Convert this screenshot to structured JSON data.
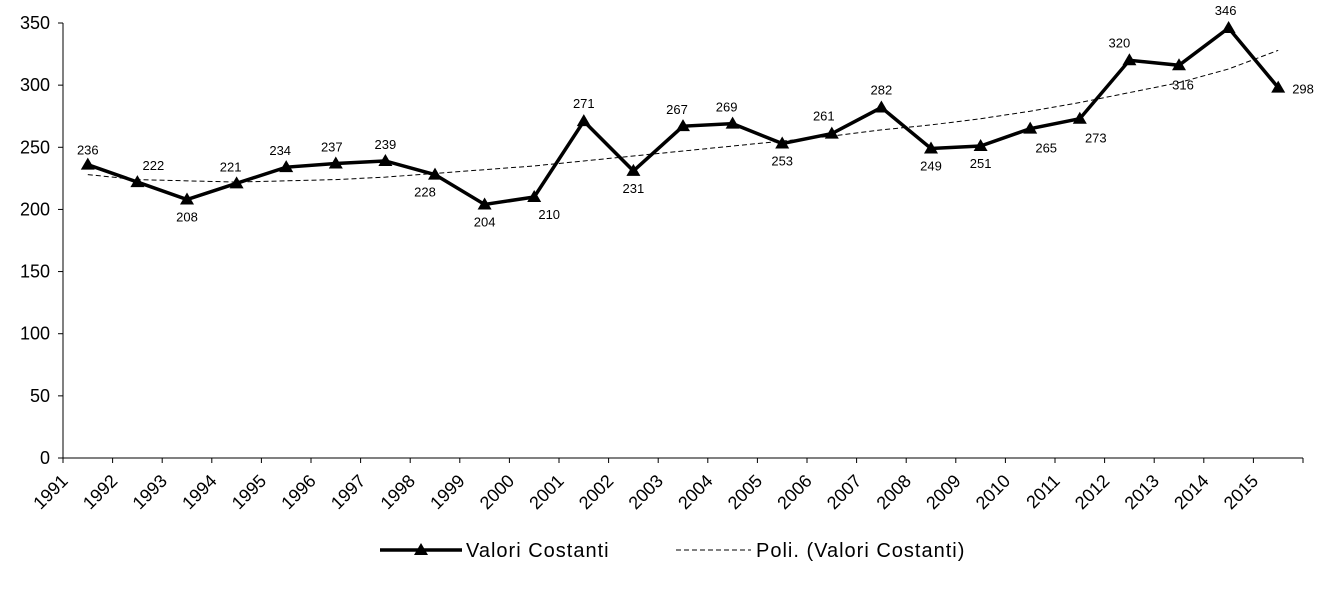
{
  "chart_data": {
    "type": "line",
    "categories": [
      "1991",
      "1992",
      "1993",
      "1994",
      "1995",
      "1996",
      "1997",
      "1998",
      "1999",
      "2000",
      "2001",
      "2002",
      "2003",
      "2004",
      "2005",
      "2006",
      "2007",
      "2008",
      "2009",
      "2010",
      "2011",
      "2012",
      "2013",
      "2014",
      "2015"
    ],
    "series": [
      {
        "name": "Valori Costanti",
        "values": [
          236,
          222,
          208,
          221,
          234,
          237,
          239,
          228,
          204,
          210,
          271,
          231,
          267,
          269,
          253,
          261,
          282,
          249,
          251,
          265,
          273,
          320,
          316,
          346,
          298
        ],
        "color": "#000000",
        "marker": "triangle"
      },
      {
        "name": "Poli. (Valori Costanti)",
        "values": [
          228,
          224,
          223,
          222,
          223,
          224,
          226,
          229,
          232,
          235,
          239,
          243,
          247,
          251,
          255,
          259,
          264,
          268,
          273,
          279,
          286,
          294,
          302,
          313,
          328
        ],
        "color": "#000000",
        "style": "dashed"
      }
    ],
    "yticks": [
      "0",
      "50",
      "100",
      "150",
      "200",
      "250",
      "300",
      "350"
    ],
    "ylim": [
      0,
      350
    ],
    "legend_position": "bottom",
    "grid": false
  }
}
